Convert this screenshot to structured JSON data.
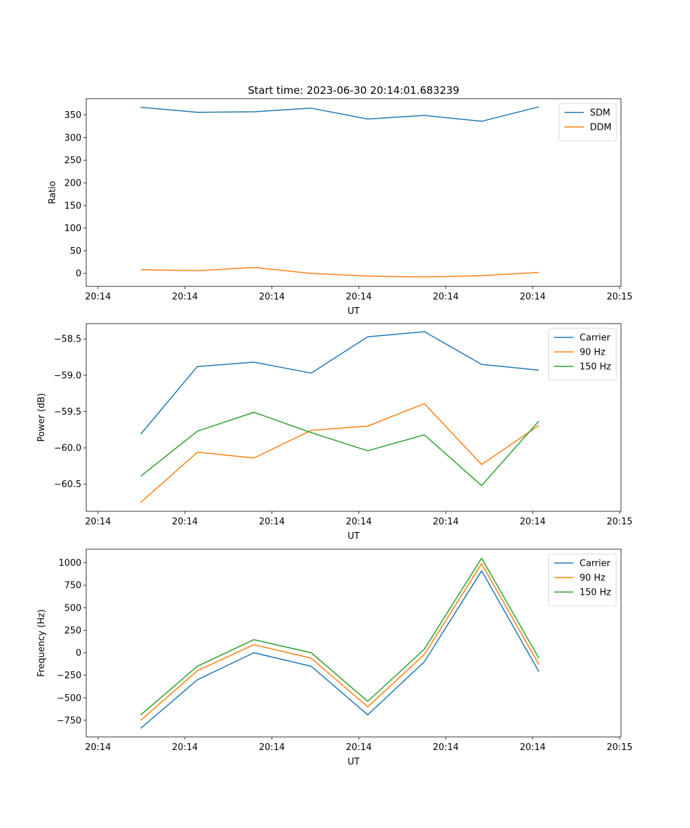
{
  "figure_title": "Start time: 2023-06-30 20:14:01.683239",
  "chart_data": [
    {
      "type": "line",
      "xlabel": "UT",
      "ylabel": "Ratio",
      "x_ticks": [
        "20:14",
        "20:14",
        "20:14",
        "20:14",
        "20:14",
        "20:14",
        "20:15"
      ],
      "y_ticks": [
        "0",
        "50",
        "100",
        "150",
        "200",
        "250",
        "300",
        "350"
      ],
      "ylim": [
        -28.7,
        386
      ],
      "legend_position": "upper-right",
      "series": [
        {
          "name": "SDM",
          "color": "#1f77b4",
          "values": [
            367,
            356,
            357,
            365,
            341,
            349,
            336,
            368
          ]
        },
        {
          "name": "DDM",
          "color": "#ff7f0e",
          "values": [
            8,
            6,
            13,
            0,
            -6,
            -8,
            -5,
            2
          ]
        }
      ]
    },
    {
      "type": "line",
      "xlabel": "UT",
      "ylabel": "Power (dB)",
      "x_ticks": [
        "20:14",
        "20:14",
        "20:14",
        "20:14",
        "20:14",
        "20:14",
        "20:15"
      ],
      "y_ticks": [
        "−60.5",
        "−60.0",
        "−59.5",
        "−59.0",
        "−58.5"
      ],
      "ylim": [
        -60.873,
        -58.289
      ],
      "legend_position": "upper-right",
      "series": [
        {
          "name": "Carrier",
          "color": "#1f77b4",
          "values": [
            -59.81,
            -58.88,
            -58.82,
            -58.97,
            -58.47,
            -58.4,
            -58.85,
            -58.93
          ]
        },
        {
          "name": "90 Hz",
          "color": "#ff7f0e",
          "values": [
            -60.75,
            -60.06,
            -60.14,
            -59.76,
            -59.7,
            -59.39,
            -60.23,
            -59.69
          ]
        },
        {
          "name": "150 Hz",
          "color": "#2ca02c",
          "values": [
            -60.39,
            -59.77,
            -59.51,
            -59.79,
            -60.04,
            -59.82,
            -60.52,
            -59.63
          ]
        }
      ]
    },
    {
      "type": "line",
      "xlabel": "UT",
      "ylabel": "Frequency (Hz)",
      "x_ticks": [
        "20:14",
        "20:14",
        "20:14",
        "20:14",
        "20:14",
        "20:14",
        "20:15"
      ],
      "y_ticks": [
        "−750",
        "−500",
        "−250",
        "0",
        "250",
        "500",
        "750",
        "1000"
      ],
      "ylim": [
        -935,
        1150
      ],
      "legend_position": "upper-right",
      "series": [
        {
          "name": "Carrier",
          "color": "#1f77b4",
          "values": [
            -840,
            -300,
            0,
            -150,
            -690,
            -100,
            910,
            -210
          ]
        },
        {
          "name": "90 Hz",
          "color": "#ff7f0e",
          "values": [
            -750,
            -200,
            90,
            -60,
            -600,
            -20,
            990,
            -130
          ]
        },
        {
          "name": "150 Hz",
          "color": "#2ca02c",
          "values": [
            -690,
            -150,
            145,
            0,
            -540,
            40,
            1050,
            -60
          ]
        }
      ]
    }
  ]
}
